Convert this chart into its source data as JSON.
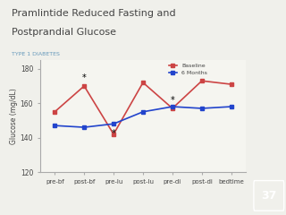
{
  "title_line1": "Pramlintide Reduced Fasting and",
  "title_line2": "Postprandial Glucose",
  "subtitle": "TYPE 1 DIABETES",
  "ylabel": "Glucose (mg/dL)",
  "categories": [
    "pre-bf",
    "post-bf",
    "pre-lu",
    "post-lu",
    "pre-di",
    "post-di",
    "bedtime"
  ],
  "baseline": [
    155,
    170,
    142,
    172,
    157,
    173,
    171
  ],
  "six_months": [
    147,
    146,
    148,
    155,
    158,
    157,
    158
  ],
  "baseline_color": "#cc4444",
  "six_months_color": "#2244cc",
  "ylim": [
    120,
    185
  ],
  "yticks": [
    120,
    140,
    160,
    180
  ],
  "bg_color": "#f5f5f0",
  "slide_bg": "#f0f0eb",
  "right_bar_color": "#b5548a",
  "page_number": "37",
  "asterisk_baseline": [
    1,
    4
  ],
  "asterisk_sixmonths": [
    2
  ],
  "title_color": "#444444",
  "subtitle_color": "#6699bb",
  "legend_labels": [
    "Baseline",
    "6 Months"
  ]
}
